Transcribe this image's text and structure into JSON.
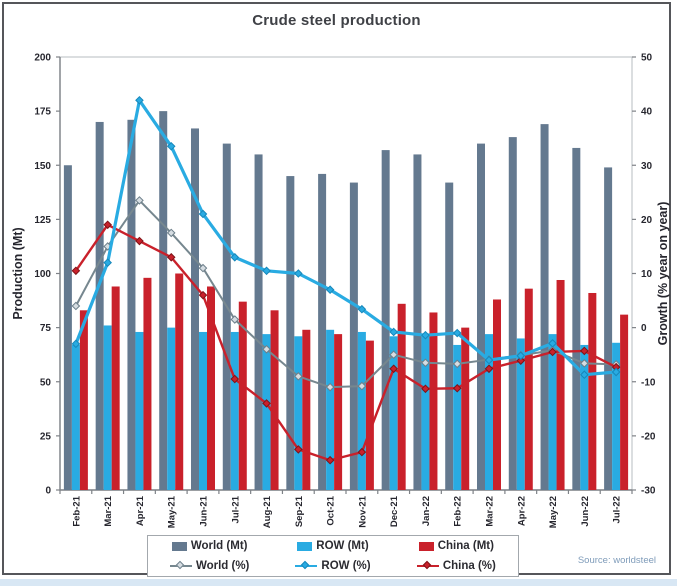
{
  "source": {
    "label": "Source: worldsteel"
  },
  "chart_data": {
    "type": "combo-bar-line",
    "title": "Crude steel production",
    "categories": [
      "Feb-21",
      "Mar-21",
      "Apr-21",
      "May-21",
      "Jun-21",
      "Jul-21",
      "Aug-21",
      "Sep-21",
      "Oct-21",
      "Nov-21",
      "Dec-21",
      "Jan-22",
      "Feb-22",
      "Mar-22",
      "Apr-22",
      "May-22",
      "Jun-22",
      "Jul-22"
    ],
    "series": [
      {
        "name": "World (Mt)",
        "type": "bar",
        "axis": "left",
        "color": "#64798F",
        "values": [
          150,
          170,
          171,
          175,
          167,
          160,
          155,
          145,
          146,
          142,
          157,
          155,
          142,
          160,
          163,
          169,
          158,
          149
        ]
      },
      {
        "name": "ROW (Mt)",
        "type": "bar",
        "axis": "left",
        "color": "#29ABE2",
        "values": [
          67,
          76,
          73,
          75,
          73,
          73,
          72,
          71,
          74,
          73,
          71,
          72,
          67,
          72,
          70,
          72,
          67,
          68
        ]
      },
      {
        "name": "China (Mt)",
        "type": "bar",
        "axis": "left",
        "color": "#C9212B",
        "values": [
          83,
          94,
          98,
          100,
          94,
          87,
          83,
          74,
          72,
          69,
          86,
          82,
          75,
          88,
          93,
          97,
          91,
          81
        ]
      },
      {
        "name": "World (%)",
        "type": "line",
        "axis": "right",
        "color": "#76878F",
        "line_width": 2,
        "marker_fill": "#d6dde2",
        "marker_stroke": "#6d7f8a",
        "values": [
          4,
          15,
          23.5,
          17.5,
          11,
          1.5,
          -4,
          -9,
          -11,
          -10.8,
          -5,
          -6.5,
          -6.7,
          -5.9,
          -5.1,
          -4.2,
          -6.6,
          -6.8
        ]
      },
      {
        "name": "ROW (%)",
        "type": "line",
        "axis": "right",
        "color": "#29ABE2",
        "line_width": 3.2,
        "marker_fill": "#29ABE2",
        "marker_stroke": "#1787BA",
        "values": [
          -3,
          12,
          42,
          33.5,
          21,
          13,
          10.5,
          10,
          7,
          3.4,
          -0.8,
          -1.4,
          -1,
          -6,
          -5.2,
          -2.9,
          -8.7,
          -8.2
        ]
      },
      {
        "name": "China (%)",
        "type": "line",
        "axis": "right",
        "color": "#C9212B",
        "line_width": 2.4,
        "marker_fill": "#C9212B",
        "marker_stroke": "#7E1418",
        "values": [
          10.5,
          19,
          16,
          13,
          6,
          -9.5,
          -14,
          -22.5,
          -24.5,
          -23,
          -7.6,
          -11.3,
          -11.2,
          -7.6,
          -6.1,
          -4.5,
          -4.3,
          -7.3
        ]
      }
    ],
    "left_axis": {
      "label": "Production (Mt)",
      "min": 0,
      "max": 200,
      "ticks": [
        0,
        25,
        50,
        75,
        100,
        125,
        150,
        175,
        200
      ]
    },
    "right_axis": {
      "label": "Growth (% year on year)",
      "min": -30,
      "max": 50,
      "ticks": [
        -30,
        -20,
        -10,
        0,
        10,
        20,
        30,
        40,
        50
      ]
    },
    "legend_position": "bottom",
    "grid": false
  }
}
